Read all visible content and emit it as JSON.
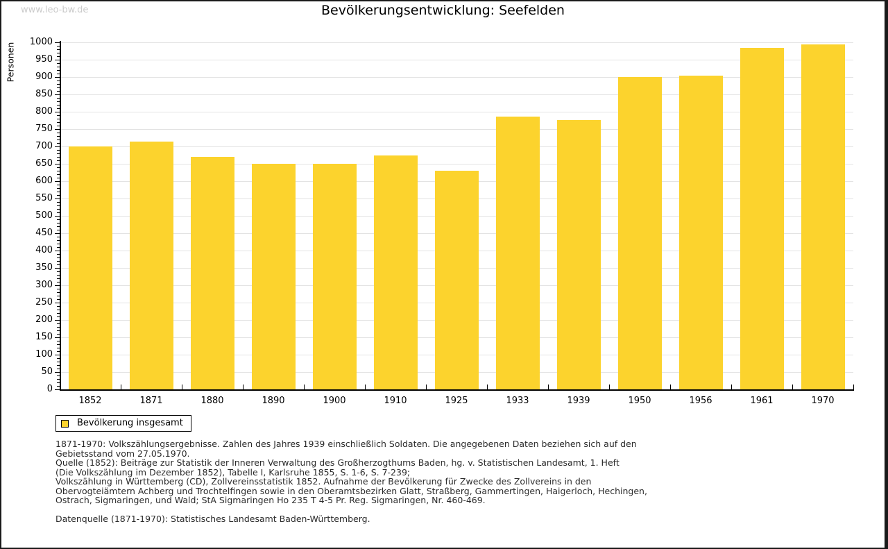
{
  "page": {
    "watermark": "www.leo-bw.de",
    "title": "Bevölkerungsentwicklung: Seefelden"
  },
  "chart_data": {
    "type": "bar",
    "title": "Bevölkerungsentwicklung: Seefelden",
    "xlabel": "",
    "ylabel": "Personen",
    "categories": [
      "1852",
      "1871",
      "1880",
      "1890",
      "1900",
      "1910",
      "1925",
      "1933",
      "1939",
      "1950",
      "1956",
      "1961",
      "1970"
    ],
    "series": [
      {
        "name": "Bevölkerung insgesamt",
        "values": [
          700,
          714,
          670,
          650,
          650,
          674,
          630,
          786,
          776,
          900,
          905,
          985,
          995
        ],
        "color": "#fcd32d"
      }
    ],
    "ylim": [
      0,
      1000
    ],
    "y_major_step": 50,
    "y_minor_step": 10,
    "y_tick_labels": [
      "0",
      "50",
      "100",
      "150",
      "200",
      "250",
      "300",
      "350",
      "400",
      "450",
      "500",
      "550",
      "600",
      "650",
      "700",
      "750",
      "800",
      "850",
      "900",
      "950",
      "1000"
    ],
    "grid": true,
    "gridline_color": "#e3e3e3",
    "legend_position": "below-left"
  },
  "legend": {
    "label": "Bevölkerung insgesamt",
    "swatch_color": "#fcd32d"
  },
  "footnotes": {
    "lines": [
      "1871-1970: Volkszählungsergebnisse. Zahlen des Jahres 1939 einschließlich Soldaten. Die angegebenen Daten beziehen sich auf den",
      "Gebietsstand vom 27.05.1970.",
      "Quelle (1852): Beiträge zur Statistik der Inneren Verwaltung des Großherzogthums Baden, hg. v. Statistischen Landesamt, 1. Heft",
      "(Die Volkszählung im Dezember 1852), Tabelle I, Karlsruhe 1855, S. 1-6, S. 7-239;",
      "Volkszählung in Württemberg (CD), Zollvereinsstatistik 1852. Aufnahme der Bevölkerung für Zwecke des Zollvereins in den",
      "Obervogteiämtern Achberg und Trochtelfingen sowie in den Oberamtsbezirken Glatt, Straßberg, Gammertingen, Haigerloch, Hechingen,",
      "Ostrach, Sigmaringen, und Wald; StA Sigmaringen Ho 235 T 4-5 Pr. Reg. Sigmaringen, Nr. 460-469."
    ],
    "datasource": "Datenquelle (1871-1970): Statistisches Landesamt Baden-Württemberg."
  }
}
